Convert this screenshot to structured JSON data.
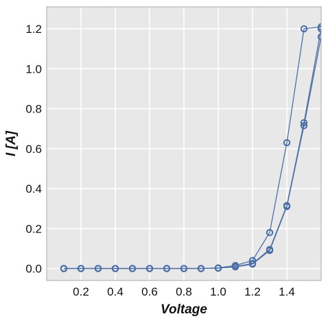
{
  "chart_data": {
    "type": "line",
    "title": "",
    "xlabel": "Voltage",
    "ylabel": "I [A]",
    "xlim": [
      0.0,
      1.6
    ],
    "ylim": [
      -0.06,
      1.31
    ],
    "xticks": [
      0.2,
      0.4,
      0.6,
      0.8,
      1.0,
      1.2,
      1.4
    ],
    "xtick_labels": [
      "0.2",
      "0.4",
      "0.6",
      "0.8",
      "1.0",
      "1.2",
      "1.4"
    ],
    "yticks": [
      0.0,
      0.2,
      0.4,
      0.6,
      0.8,
      1.0,
      1.2
    ],
    "ytick_labels": [
      "0.0",
      "0.2",
      "0.4",
      "0.6",
      "0.8",
      "1.0",
      "1.2"
    ],
    "grid": true,
    "background": "#e8e8e8",
    "grid_color": "#ffffff",
    "series_color": "#4c6ea6",
    "marker": "open-circle",
    "series": [
      {
        "x": [
          0.1,
          0.2,
          0.3,
          0.4,
          0.5,
          0.6,
          0.7,
          0.8,
          0.9,
          1.0,
          1.1,
          1.2,
          1.3,
          1.4,
          1.5,
          1.6
        ],
        "values": [
          0.0,
          0.0,
          0.0,
          0.0,
          0.0,
          0.0,
          0.0,
          0.0,
          0.0,
          0.003,
          0.015,
          0.04,
          0.18,
          0.63,
          1.2,
          1.21
        ]
      },
      {
        "x": [
          0.1,
          0.2,
          0.3,
          0.4,
          0.5,
          0.6,
          0.7,
          0.8,
          0.9,
          1.0,
          1.1,
          1.2,
          1.3,
          1.4,
          1.5,
          1.6
        ],
        "values": [
          0.0,
          0.0,
          0.0,
          0.0,
          0.0,
          0.0,
          0.0,
          0.0,
          0.0,
          0.002,
          0.01,
          0.025,
          0.095,
          0.315,
          0.73,
          1.2
        ]
      },
      {
        "x": [
          0.1,
          0.2,
          0.3,
          0.4,
          0.5,
          0.6,
          0.7,
          0.8,
          0.9,
          1.0,
          1.1,
          1.2,
          1.3,
          1.4,
          1.5,
          1.6
        ],
        "values": [
          0.0,
          0.0,
          0.0,
          0.0,
          0.0,
          0.0,
          0.0,
          0.0,
          0.0,
          0.002,
          0.008,
          0.022,
          0.09,
          0.31,
          0.715,
          1.16
        ]
      }
    ]
  }
}
